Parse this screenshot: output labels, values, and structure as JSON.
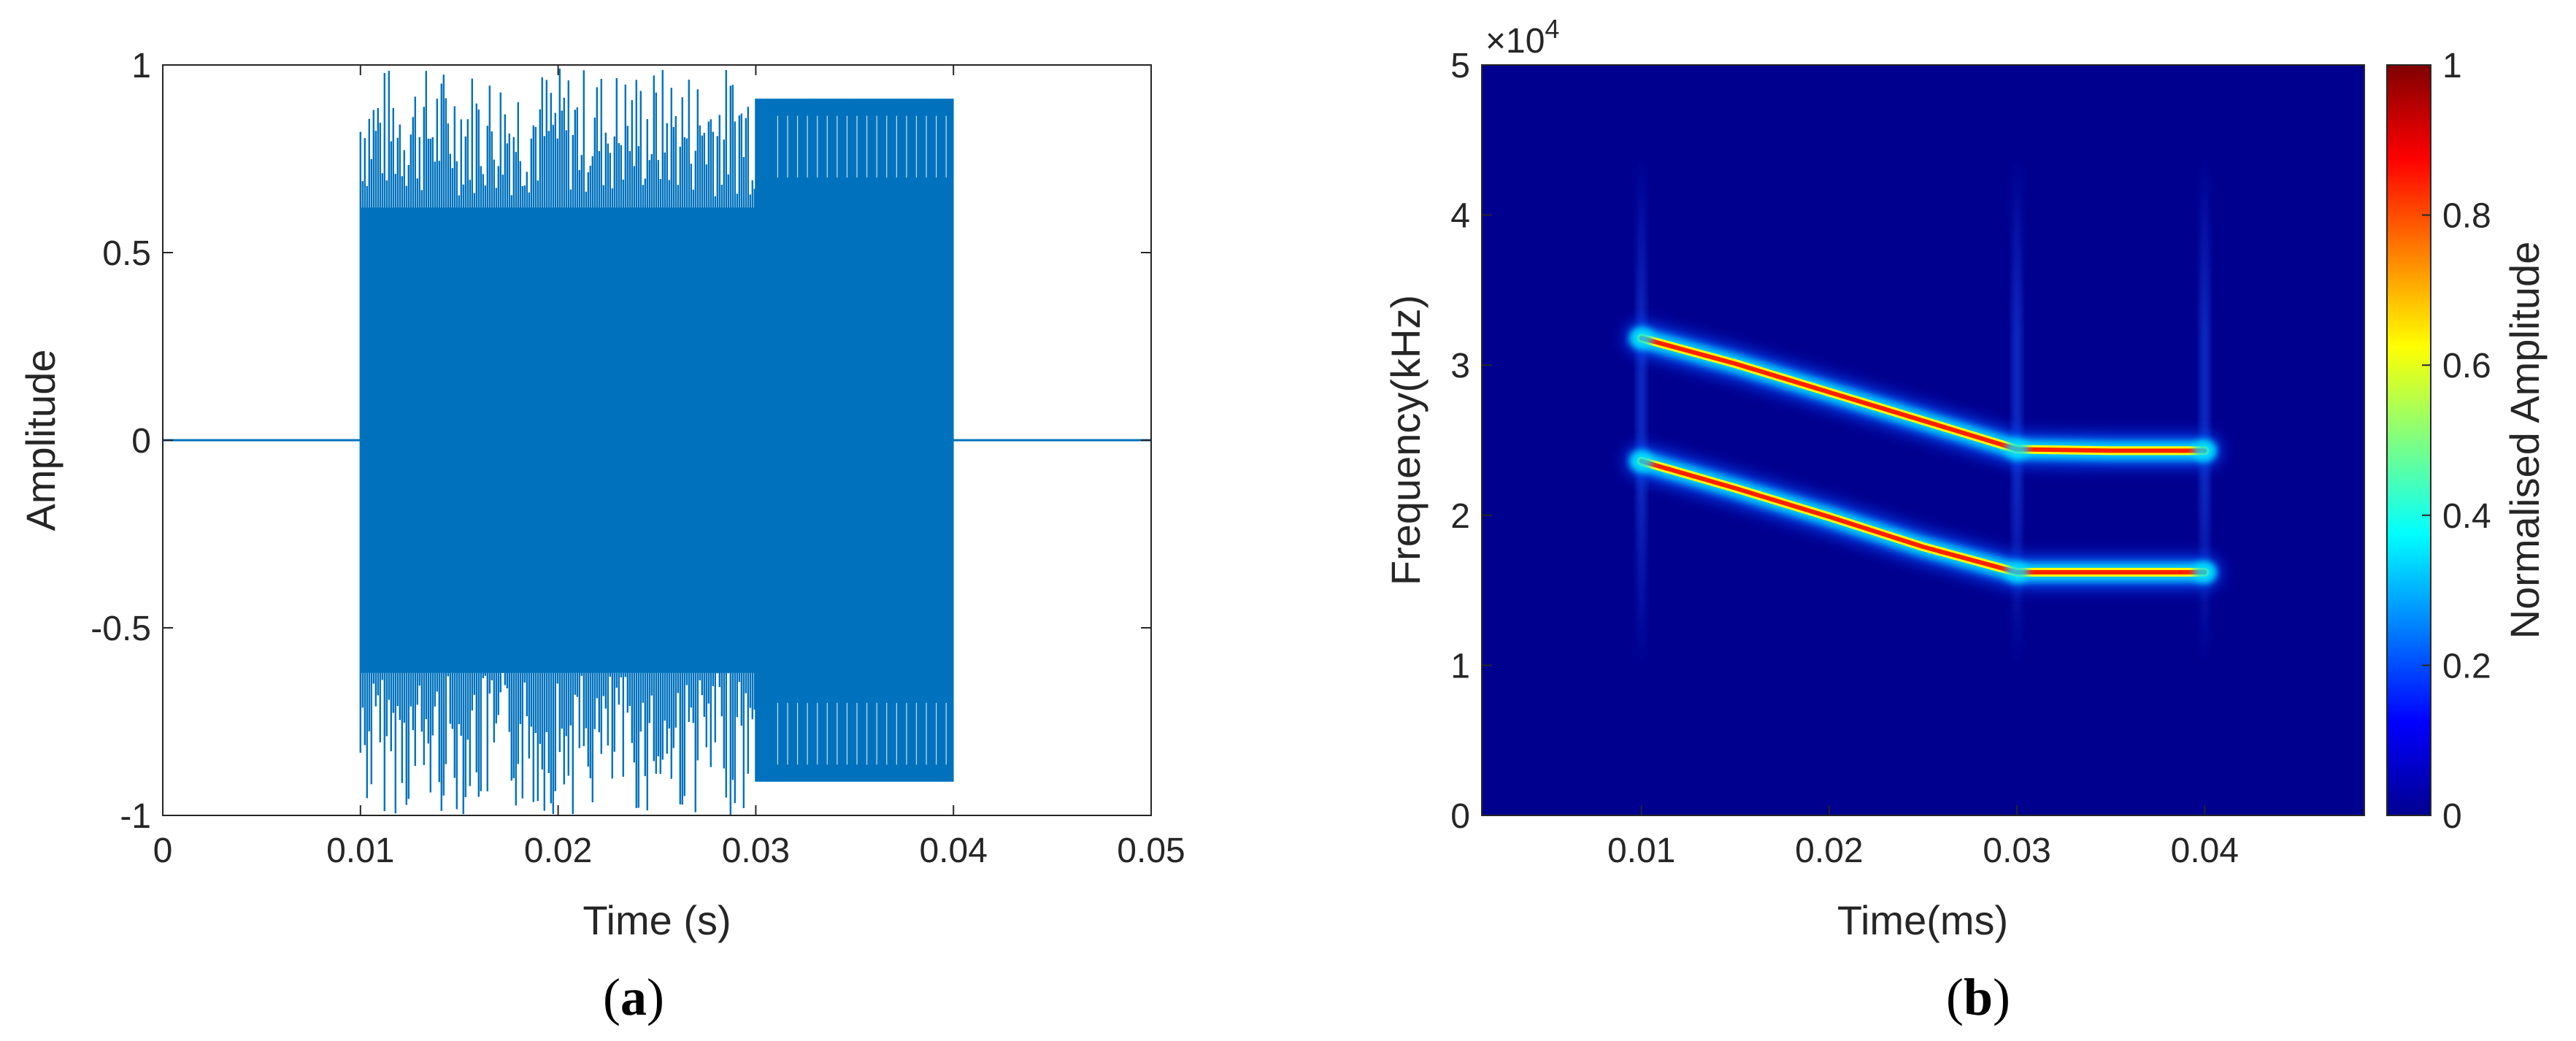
{
  "chart_data": [
    {
      "type": "line",
      "panel_label": {
        "open": "(",
        "letter": "a",
        "close": ")"
      },
      "xlabel": "Time (s)",
      "ylabel": "Amplitude",
      "xlim": [
        0,
        0.05
      ],
      "ylim": [
        -1,
        1
      ],
      "xticks": [
        "0",
        "0.01",
        "0.02",
        "0.03",
        "0.04",
        "0.05"
      ],
      "yticks": [
        "-1",
        "-0.5",
        "0",
        "0.5",
        "1"
      ],
      "color": "#0072BD",
      "series": [
        {
          "segments": [
            {
              "x_start": 0,
              "x_end": 0.01,
              "amplitude": 0
            },
            {
              "x_start": 0.01,
              "x_end": 0.03,
              "amplitude": 1.0,
              "variation": "dense, irregular peaks (~0.7–1.0)"
            },
            {
              "x_start": 0.03,
              "x_end": 0.04,
              "amplitude": 0.91,
              "variation": "steady"
            },
            {
              "x_start": 0.04,
              "x_end": 0.05,
              "amplitude": 0
            }
          ]
        }
      ]
    },
    {
      "type": "heatmap",
      "panel_label": {
        "open": "(",
        "letter": "b",
        "close": ")"
      },
      "xlabel": "Time(ms)",
      "ylabel": "Frequency(kHz)",
      "y_exponent_label": "×10",
      "y_exponent_power": "4",
      "xlim": [
        0.0015,
        0.0485
      ],
      "ylim": [
        0,
        50000
      ],
      "xticks": [
        "0.01",
        "0.02",
        "0.03",
        "0.04"
      ],
      "yticks": [
        "0",
        "1",
        "2",
        "3",
        "4",
        "5"
      ],
      "colormap": "jet",
      "background_color": "#00008F",
      "colorbar": {
        "label": "Normalised Amplitude",
        "range": [
          0,
          1
        ],
        "ticks": [
          "0",
          "0.2",
          "0.4",
          "0.6",
          "0.8",
          "1"
        ]
      },
      "ridges": [
        {
          "name": "",
          "points": [
            [
              0.01,
              31800
            ],
            [
              0.015,
              30100
            ],
            [
              0.02,
              28200
            ],
            [
              0.025,
              26300
            ],
            [
              0.03,
              24400
            ],
            [
              0.035,
              24300
            ],
            [
              0.04,
              24300
            ]
          ],
          "amplitude": 1
        },
        {
          "name": "",
          "points": [
            [
              0.01,
              23600
            ],
            [
              0.015,
              21800
            ],
            [
              0.02,
              19900
            ],
            [
              0.025,
              17900
            ],
            [
              0.03,
              16200
            ],
            [
              0.035,
              16200
            ],
            [
              0.04,
              16200
            ]
          ],
          "amplitude": 1
        }
      ],
      "vertical_streaks_at": [
        0.01,
        0.03,
        0.04
      ]
    }
  ]
}
